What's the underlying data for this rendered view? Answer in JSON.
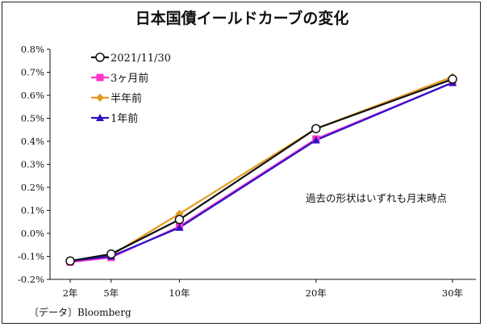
{
  "chart_data": {
    "type": "line",
    "title": "日本国債イールドカーブの変化",
    "categories": [
      "2年",
      "5年",
      "10年",
      "20年",
      "30年"
    ],
    "x_positions": [
      2,
      5,
      10,
      20,
      30
    ],
    "y_ticks": [
      "-0.2%",
      "-0.1%",
      "0.0%",
      "0.1%",
      "0.2%",
      "0.3%",
      "0.4%",
      "0.5%",
      "0.6%",
      "0.7%",
      "0.8%"
    ],
    "ylim": [
      -0.2,
      0.8
    ],
    "grid": false,
    "legend_position": "top-left",
    "series": [
      {
        "name": "2021/11/30",
        "color": "#111111",
        "marker": "circle-open",
        "values": [
          -0.12,
          -0.09,
          0.06,
          0.455,
          0.67
        ]
      },
      {
        "name": "3ヶ月前",
        "color": "#ff33cc",
        "marker": "square",
        "values": [
          -0.125,
          -0.105,
          0.03,
          0.41,
          0.655
        ]
      },
      {
        "name": "半年前",
        "color": "#e69a1f",
        "marker": "diamond",
        "values": [
          -0.125,
          -0.095,
          0.085,
          0.455,
          0.68
        ]
      },
      {
        "name": "1年前",
        "color": "#2a12c8",
        "marker": "triangle",
        "values": [
          -0.12,
          -0.1,
          0.025,
          0.405,
          0.655
        ]
      }
    ],
    "annotation": "過去の形状はいずれも月末時点",
    "source": "〔データ〕Bloomberg"
  }
}
